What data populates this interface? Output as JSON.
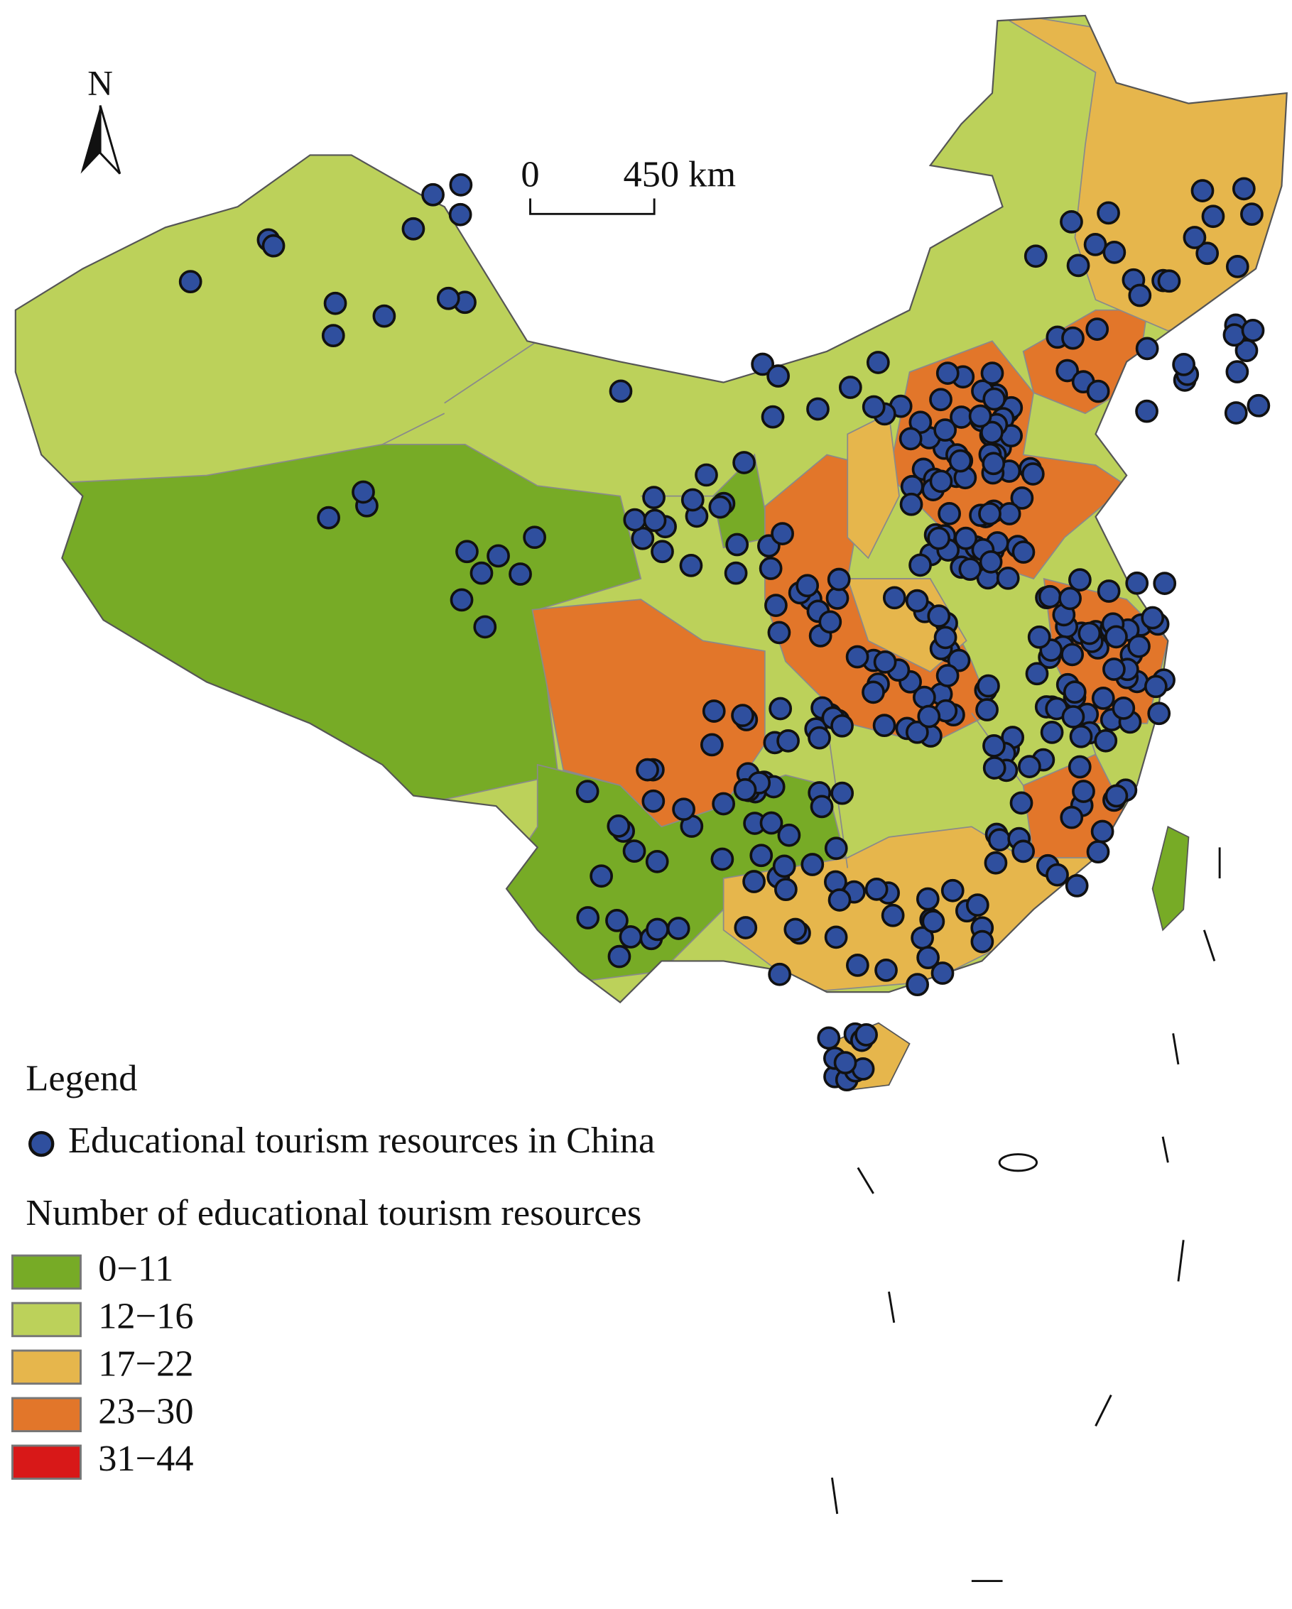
{
  "north_arrow": "N",
  "scale_bar": {
    "start": "0",
    "end": "450 km"
  },
  "legend": {
    "title": "Legend",
    "points_label": "Educational tourism resources in China",
    "point_color": "#2f4f9e",
    "classes_title": "Number of educational tourism resources",
    "classes": [
      {
        "label": "0−11",
        "color": "#77ab26"
      },
      {
        "label": "12−16",
        "color": "#bcd15a"
      },
      {
        "label": "17−22",
        "color": "#e6b64c"
      },
      {
        "label": "23−30",
        "color": "#e2762a"
      },
      {
        "label": "31−44",
        "color": "#d81818"
      }
    ]
  }
}
